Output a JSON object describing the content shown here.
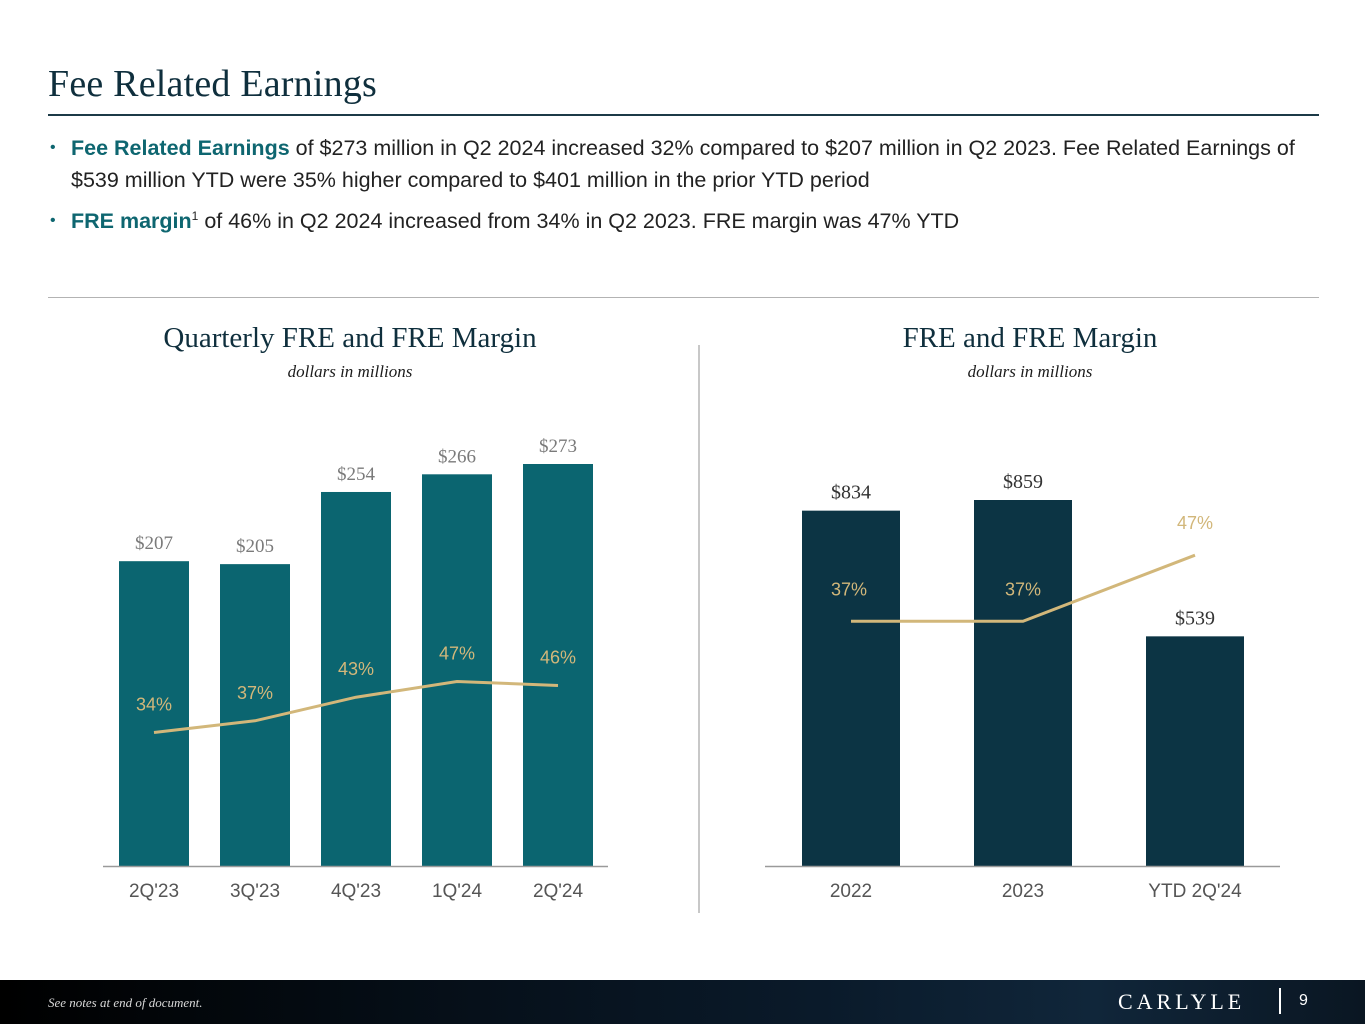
{
  "title": "Fee Related Earnings",
  "bullets": [
    {
      "bold": "Fee Related Earnings",
      "text": " of $273 million in Q2 2024 increased 32% compared to $207 million in Q2 2023. Fee Related Earnings of $539 million YTD were 35% higher compared to $401 million in the prior YTD period"
    },
    {
      "bold": "FRE margin",
      "sup": "1",
      "text": " of 46% in Q2 2024 increased from 34% in Q2 2023. FRE margin was 47% YTD"
    }
  ],
  "colors": {
    "teal": "#0b6570",
    "navy": "#0c3444",
    "gold": "#d2b77a",
    "label_gray": "#7a7a7a"
  },
  "chart_data": [
    {
      "type": "bar",
      "title": "Quarterly FRE and FRE Margin",
      "subtitle": "dollars in millions",
      "categories": [
        "2Q'23",
        "3Q'23",
        "4Q'23",
        "1Q'24",
        "2Q'24"
      ],
      "series": [
        {
          "name": "FRE",
          "kind": "bar",
          "values": [
            207,
            205,
            254,
            266,
            273
          ],
          "labels": [
            "$207",
            "$205",
            "$254",
            "$266",
            "$273"
          ]
        },
        {
          "name": "FRE Margin",
          "kind": "line",
          "values": [
            34,
            37,
            43,
            47,
            46
          ],
          "labels": [
            "34%",
            "37%",
            "43%",
            "47%",
            "46%"
          ]
        }
      ],
      "ylim": [
        0,
        273
      ],
      "margin_ylim": [
        0,
        80
      ]
    },
    {
      "type": "bar",
      "title": "FRE and FRE Margin",
      "subtitle": "dollars in millions",
      "categories": [
        "2022",
        "2023",
        "YTD 2Q'24"
      ],
      "series": [
        {
          "name": "FRE",
          "kind": "bar",
          "values": [
            834,
            859,
            539
          ],
          "labels": [
            "$834",
            "$859",
            "$539"
          ]
        },
        {
          "name": "FRE Margin",
          "kind": "line",
          "values": [
            37,
            37,
            47
          ],
          "labels": [
            "37%",
            "37%",
            "47%"
          ]
        }
      ],
      "ylim": [
        0,
        859
      ],
      "margin_ylim": [
        0,
        75
      ]
    }
  ],
  "footer": {
    "note": "See notes at end of document.",
    "logo": "CARLYLE",
    "page": "9"
  }
}
